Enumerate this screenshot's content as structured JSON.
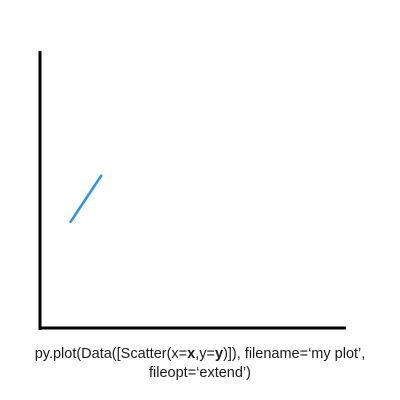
{
  "accent_color": "#2f96de",
  "axis_color": "#000000",
  "chart_data": {
    "type": "line",
    "title": "",
    "xlabel": "",
    "ylabel": "",
    "grid": false,
    "series": [
      {
        "color": "#2f96de",
        "x": [
          1,
          2
        ],
        "y": [
          1,
          2
        ]
      }
    ],
    "xlim": [
      0,
      10
    ],
    "ylim": [
      -1.3,
      4.7
    ]
  },
  "caption": {
    "code_prefix": "py.plot(Data([Scatter(x=",
    "x_bold": "x",
    "code_mid": ",y=",
    "y_bold": "y",
    "code_suffix": ")]), filename=‘my plot’,",
    "line2": "fileopt=‘extend’)"
  }
}
